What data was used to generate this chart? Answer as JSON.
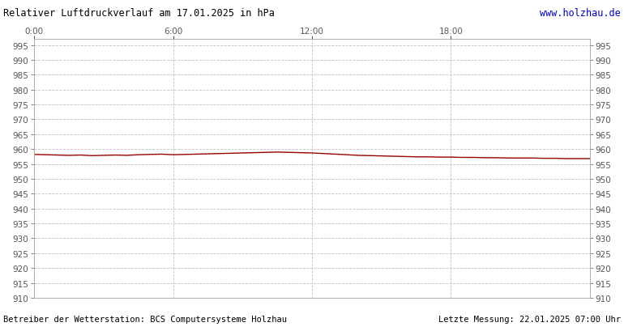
{
  "title": "Relativer Luftdruckverlauf am 17.01.2025 in hPa",
  "url_text": "www.holzhau.de",
  "footer_left": "Betreiber der Wetterstation: BCS Computersysteme Holzhau",
  "footer_right": "Letzte Messung: 22.01.2025 07:00 Uhr",
  "x_tick_positions": [
    0,
    360,
    720,
    1080
  ],
  "x_tick_labels": [
    "0:00",
    "6:00",
    "12:00",
    "18:00"
  ],
  "ylim": [
    910,
    997
  ],
  "yticks": [
    910,
    915,
    920,
    925,
    930,
    935,
    940,
    945,
    950,
    955,
    960,
    965,
    970,
    975,
    980,
    985,
    990,
    995
  ],
  "xlim": [
    0,
    1440
  ],
  "line_color": "#990000",
  "background_color": "#ffffff",
  "grid_color": "#bbbbbb",
  "title_color": "#000000",
  "url_color": "#0000cc",
  "footer_color": "#000000",
  "pressure_data": [
    [
      0,
      958.2
    ],
    [
      30,
      958.1
    ],
    [
      60,
      958.0
    ],
    [
      90,
      957.9
    ],
    [
      120,
      958.0
    ],
    [
      150,
      957.8
    ],
    [
      180,
      957.9
    ],
    [
      210,
      958.0
    ],
    [
      240,
      957.9
    ],
    [
      270,
      958.1
    ],
    [
      300,
      958.2
    ],
    [
      330,
      958.3
    ],
    [
      360,
      958.1
    ],
    [
      390,
      958.2
    ],
    [
      420,
      958.3
    ],
    [
      450,
      958.4
    ],
    [
      480,
      958.5
    ],
    [
      510,
      958.6
    ],
    [
      540,
      958.7
    ],
    [
      570,
      958.8
    ],
    [
      600,
      958.9
    ],
    [
      630,
      959.0
    ],
    [
      660,
      958.9
    ],
    [
      690,
      958.8
    ],
    [
      720,
      958.7
    ],
    [
      750,
      958.5
    ],
    [
      780,
      958.3
    ],
    [
      810,
      958.1
    ],
    [
      840,
      957.9
    ],
    [
      870,
      957.8
    ],
    [
      900,
      957.7
    ],
    [
      930,
      957.6
    ],
    [
      960,
      957.5
    ],
    [
      990,
      957.4
    ],
    [
      1020,
      957.4
    ],
    [
      1050,
      957.3
    ],
    [
      1080,
      957.3
    ],
    [
      1110,
      957.2
    ],
    [
      1140,
      957.2
    ],
    [
      1170,
      957.1
    ],
    [
      1200,
      957.1
    ],
    [
      1230,
      957.0
    ],
    [
      1260,
      957.0
    ],
    [
      1290,
      957.0
    ],
    [
      1320,
      956.9
    ],
    [
      1350,
      956.9
    ],
    [
      1380,
      956.8
    ],
    [
      1410,
      956.8
    ],
    [
      1440,
      956.8
    ]
  ]
}
